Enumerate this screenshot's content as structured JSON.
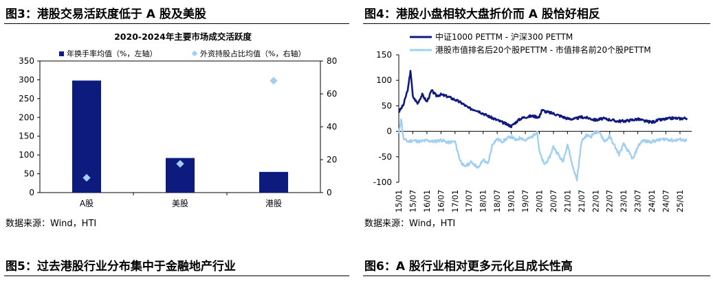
{
  "figures": {
    "fig3_title": "图3：港股交易活跃度低于 A 股及美股",
    "fig4_title": "图4：港股小盘相较大盘折价而 A 股恰好相反",
    "fig5_title": "图5：过去港股行业分布集中于金融地产行业",
    "fig6_title": "图6：A 股行业相对更多元化且成长性高",
    "source_left": "数据来源：Wind，HTI",
    "source_right": "数据来源：Wind，HTI"
  },
  "colors": {
    "navy": "#0d1a7e",
    "light_blue": "#9fcff3"
  },
  "chart_data": [
    {
      "type": "bar",
      "title": "2020-2024年主要市场成交活跃度",
      "categories": [
        "A股",
        "美股",
        "港股"
      ],
      "series": [
        {
          "name": "年换手率均值（%，左轴）",
          "kind": "bar",
          "axis": "left",
          "values": [
            298,
            92,
            55
          ]
        },
        {
          "name": "外资持股占比均值（%，右轴）",
          "kind": "scatter",
          "axis": "right",
          "values": [
            9,
            17.5,
            68
          ]
        }
      ],
      "y_left": {
        "range": [
          0,
          350
        ],
        "ticks": [
          "0",
          "50",
          "100",
          "150",
          "200",
          "250",
          "300",
          "350"
        ]
      },
      "y_right": {
        "range": [
          0,
          80
        ],
        "ticks": [
          "0",
          "20",
          "40",
          "60",
          "80"
        ]
      },
      "legend": "top"
    },
    {
      "type": "line",
      "x_ticks": [
        "15/01",
        "15/07",
        "16/01",
        "16/07",
        "17/01",
        "17/07",
        "18/01",
        "18/07",
        "19/01",
        "19/07",
        "20/01",
        "20/07",
        "21/01",
        "21/07",
        "22/01",
        "22/07",
        "23/01",
        "23/07",
        "24/01",
        "24/07",
        "25/01"
      ],
      "y": {
        "range": [
          -100,
          150
        ],
        "ticks": [
          "150",
          "100",
          "50",
          "0",
          "-50",
          "-100"
        ]
      },
      "legend": "top-left",
      "series": [
        {
          "name": "中证1000 PETTM - 沪深300 PETTM",
          "color": "navy",
          "points": [
            [
              "2015-01",
              38
            ],
            [
              "2015-03",
              52
            ],
            [
              "2015-05",
              85
            ],
            [
              "2015-06",
              120
            ],
            [
              "2015-07",
              68
            ],
            [
              "2015-09",
              55
            ],
            [
              "2015-11",
              72
            ],
            [
              "2016-01",
              58
            ],
            [
              "2016-03",
              80
            ],
            [
              "2016-05",
              70
            ],
            [
              "2016-07",
              72
            ],
            [
              "2016-10",
              68
            ],
            [
              "2017-01",
              62
            ],
            [
              "2017-04",
              55
            ],
            [
              "2017-07",
              45
            ],
            [
              "2017-10",
              42
            ],
            [
              "2018-01",
              35
            ],
            [
              "2018-04",
              28
            ],
            [
              "2018-07",
              22
            ],
            [
              "2018-10",
              16
            ],
            [
              "2019-01",
              10
            ],
            [
              "2019-03",
              18
            ],
            [
              "2019-05",
              25
            ],
            [
              "2019-07",
              28
            ],
            [
              "2019-10",
              30
            ],
            [
              "2020-01",
              28
            ],
            [
              "2020-02",
              42
            ],
            [
              "2020-04",
              38
            ],
            [
              "2020-07",
              35
            ],
            [
              "2020-10",
              30
            ],
            [
              "2021-01",
              25
            ],
            [
              "2021-04",
              24
            ],
            [
              "2021-07",
              28
            ],
            [
              "2021-10",
              26
            ],
            [
              "2022-01",
              22
            ],
            [
              "2022-04",
              25
            ],
            [
              "2022-07",
              23
            ],
            [
              "2022-10",
              20
            ],
            [
              "2023-01",
              20
            ],
            [
              "2023-04",
              22
            ],
            [
              "2023-07",
              24
            ],
            [
              "2023-10",
              20
            ],
            [
              "2024-01",
              18
            ],
            [
              "2024-04",
              22
            ],
            [
              "2024-07",
              24
            ],
            [
              "2024-10",
              26
            ],
            [
              "2025-01",
              25
            ],
            [
              "2025-04",
              26
            ]
          ]
        },
        {
          "name": "港股市值排名后20个股PETTM - 市值排名前20个股PETTM",
          "color": "light_blue",
          "points": [
            [
              "2015-01",
              -5
            ],
            [
              "2015-02",
              25
            ],
            [
              "2015-03",
              -15
            ],
            [
              "2015-05",
              -20
            ],
            [
              "2015-07",
              -18
            ],
            [
              "2015-10",
              -20
            ],
            [
              "2016-01",
              -18
            ],
            [
              "2016-04",
              -20
            ],
            [
              "2016-07",
              -17
            ],
            [
              "2016-10",
              -22
            ],
            [
              "2017-01",
              -20
            ],
            [
              "2017-03",
              -55
            ],
            [
              "2017-05",
              -70
            ],
            [
              "2017-08",
              -60
            ],
            [
              "2017-11",
              -72
            ],
            [
              "2018-01",
              -55
            ],
            [
              "2018-03",
              -65
            ],
            [
              "2018-05",
              -25
            ],
            [
              "2018-07",
              -15
            ],
            [
              "2018-09",
              -20
            ],
            [
              "2018-11",
              -15
            ],
            [
              "2019-01",
              -10
            ],
            [
              "2019-03",
              -18
            ],
            [
              "2019-05",
              -12
            ],
            [
              "2019-07",
              -18
            ],
            [
              "2019-10",
              -10
            ],
            [
              "2019-12",
              0
            ],
            [
              "2020-01",
              -40
            ],
            [
              "2020-03",
              -65
            ],
            [
              "2020-05",
              -55
            ],
            [
              "2020-07",
              -30
            ],
            [
              "2020-09",
              -45
            ],
            [
              "2020-11",
              -60
            ],
            [
              "2021-01",
              -25
            ],
            [
              "2021-03",
              -65
            ],
            [
              "2021-05",
              -95
            ],
            [
              "2021-07",
              -20
            ],
            [
              "2021-09",
              -8
            ],
            [
              "2021-11",
              -10
            ],
            [
              "2022-01",
              0
            ],
            [
              "2022-03",
              -5
            ],
            [
              "2022-05",
              -20
            ],
            [
              "2022-07",
              -10
            ],
            [
              "2022-09",
              -28
            ],
            [
              "2022-11",
              -45
            ],
            [
              "2023-01",
              -25
            ],
            [
              "2023-03",
              -40
            ],
            [
              "2023-05",
              -55
            ],
            [
              "2023-07",
              -30
            ],
            [
              "2023-09",
              -18
            ],
            [
              "2023-11",
              -20
            ],
            [
              "2024-01",
              -20
            ],
            [
              "2024-04",
              -17
            ],
            [
              "2024-07",
              -15
            ],
            [
              "2024-10",
              -18
            ],
            [
              "2025-01",
              -16
            ],
            [
              "2025-04",
              -18
            ]
          ]
        }
      ]
    }
  ]
}
